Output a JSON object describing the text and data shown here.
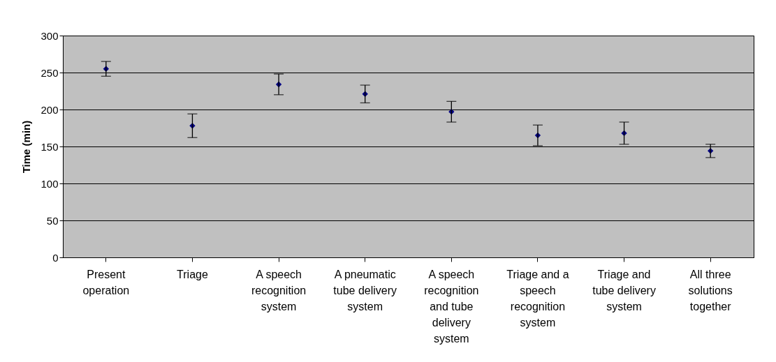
{
  "chart_data": {
    "type": "scatter",
    "ylabel": "Time (min)",
    "categories": [
      "Present operation",
      "Triage",
      "A speech recognition system",
      "A pneumatic tube delivery system",
      "A speech recognition and tube delivery system",
      "Triage and a speech recognition system",
      "Triage and tube delivery system",
      "All three solutions together"
    ],
    "values": [
      255,
      178,
      234,
      221,
      197,
      165,
      168,
      144
    ],
    "errors": [
      10,
      16,
      14,
      12,
      14,
      14,
      15,
      9
    ],
    "color": "#000080",
    "marker": "diamond",
    "ylim": [
      0,
      300
    ],
    "yticks": [
      0,
      50,
      100,
      150,
      200,
      250,
      300
    ],
    "grid": "y"
  }
}
